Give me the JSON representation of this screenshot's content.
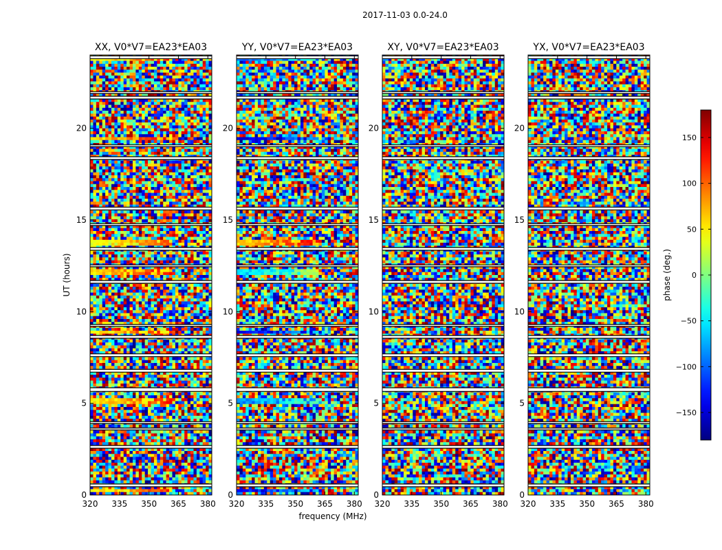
{
  "chart_data": {
    "type": "heatmap",
    "title": "2017-11-03 0.0-24.0",
    "xlabel": "frequency (MHz)",
    "ylabel": "UT (hours)",
    "xlim": [
      320,
      382
    ],
    "ylim": [
      0,
      24
    ],
    "x_ticks": [
      320,
      335,
      350,
      365,
      380
    ],
    "y_ticks": [
      0,
      5,
      10,
      15,
      20
    ],
    "panels": [
      {
        "title": "XX, V0*V7=EA23*EA03",
        "pol": "XX"
      },
      {
        "title": "YY, V0*V7=EA23*EA03",
        "pol": "YY"
      },
      {
        "title": "XY, V0*V7=EA23*EA03",
        "pol": "XY"
      },
      {
        "title": "YX, V0*V7=EA23*EA03",
        "pol": "YX"
      }
    ],
    "colorbar": {
      "label": "phase (deg.)",
      "range": [
        -180,
        180
      ],
      "ticks": [
        -150,
        -100,
        -50,
        0,
        50,
        100,
        150
      ],
      "tick_labels": [
        "−150",
        "−100",
        "−50",
        "0",
        "50",
        "100",
        "150"
      ],
      "colormap": "jet"
    },
    "flagged_bands_hours": [
      [
        0.45,
        0.6
      ],
      [
        2.55,
        2.7
      ],
      [
        3.55,
        3.65
      ],
      [
        3.9,
        4.0
      ],
      [
        5.65,
        5.85
      ],
      [
        6.7,
        6.85
      ],
      [
        7.55,
        7.7
      ],
      [
        8.55,
        8.7
      ],
      [
        9.2,
        9.3
      ],
      [
        11.55,
        11.7
      ],
      [
        12.45,
        12.55
      ],
      [
        13.35,
        13.5
      ],
      [
        14.7,
        14.8
      ],
      [
        15.55,
        15.7
      ],
      [
        18.3,
        18.45
      ],
      [
        19.0,
        19.1
      ],
      [
        21.6,
        21.75
      ],
      [
        21.9,
        22.0
      ],
      [
        23.8,
        23.95
      ]
    ],
    "coherent_rows": {
      "XX": [
        [
          0.15,
          0.3,
          40
        ],
        [
          4.9,
          5.35,
          45
        ],
        [
          8.75,
          8.95,
          50
        ],
        [
          12.05,
          12.35,
          55
        ],
        [
          13.65,
          13.85,
          30
        ],
        [
          19.35,
          19.5,
          60
        ],
        [
          23.75,
          23.9,
          40
        ]
      ],
      "YY": [
        [
          0.15,
          0.3,
          -140
        ],
        [
          4.9,
          5.35,
          -90
        ],
        [
          8.75,
          8.95,
          -140
        ],
        [
          12.05,
          12.35,
          -60
        ],
        [
          13.65,
          13.85,
          60
        ],
        [
          19.35,
          19.5,
          -160
        ],
        [
          23.75,
          23.9,
          -100
        ]
      ],
      "XY": [],
      "YX": []
    }
  }
}
